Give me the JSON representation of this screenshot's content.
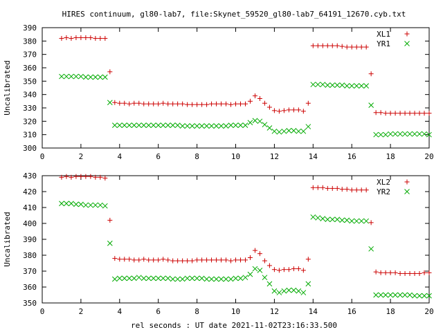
{
  "figure": {
    "title": "HIRES continuum, gl80-lab7, file:Skynet_59520_gl80-lab7_64191_12670.cyb.txt",
    "xlabel": "rel seconds : UT date 2021-11-02T23:16:33.500"
  },
  "chart_data": [
    {
      "type": "scatter",
      "ylabel": "Uncalibrated",
      "xlim": [
        0,
        20
      ],
      "ylim": [
        300,
        390
      ],
      "xticks": [
        0,
        2,
        4,
        6,
        8,
        10,
        12,
        14,
        16,
        18,
        20
      ],
      "yticks": [
        300,
        310,
        320,
        330,
        340,
        350,
        360,
        370,
        380,
        390
      ],
      "legend_position": "top-right",
      "series": [
        {
          "name": "XL1",
          "color": "#cc0000",
          "marker": "plus",
          "x": [
            1.0,
            1.25,
            1.5,
            1.75,
            2.0,
            2.25,
            2.5,
            2.75,
            3.0,
            3.25,
            3.5,
            3.75,
            4.0,
            4.25,
            4.5,
            4.75,
            5.0,
            5.25,
            5.5,
            5.75,
            6.0,
            6.25,
            6.5,
            6.75,
            7.0,
            7.25,
            7.5,
            7.75,
            8.0,
            8.25,
            8.5,
            8.75,
            9.0,
            9.25,
            9.5,
            9.75,
            10.0,
            10.25,
            10.5,
            10.75,
            11.0,
            11.25,
            11.5,
            11.75,
            12.0,
            12.25,
            12.5,
            12.75,
            13.0,
            13.25,
            13.5,
            13.75,
            14.0,
            14.25,
            14.5,
            14.75,
            15.0,
            15.25,
            15.5,
            15.75,
            16.0,
            16.25,
            16.5,
            16.75,
            17.0,
            17.25,
            17.5,
            17.75,
            18.0,
            18.25,
            18.5,
            18.75,
            19.0,
            19.25,
            19.5,
            19.75,
            20.0
          ],
          "y": [
            382,
            382.5,
            382,
            382.5,
            382.5,
            382.5,
            382.5,
            382,
            382,
            382,
            357,
            334,
            333.5,
            333.5,
            333,
            333.5,
            333.5,
            333,
            333,
            333,
            333,
            333.5,
            333,
            333,
            333,
            333,
            332.5,
            332.5,
            332.5,
            332.5,
            332.5,
            333,
            333,
            333,
            333,
            332.5,
            333,
            333,
            333,
            335,
            339,
            337,
            333.5,
            330.5,
            328,
            327.5,
            328,
            328.5,
            328.5,
            328.5,
            327.5,
            333.5,
            376.5,
            376.5,
            376.5,
            376.5,
            376.5,
            376.5,
            376,
            375.5,
            375.5,
            375.5,
            375.5,
            375.5,
            355.5,
            326.5,
            326.5,
            326,
            326,
            326,
            326,
            326,
            326,
            326,
            326,
            326,
            326
          ]
        },
        {
          "name": "YR1",
          "color": "#00aa00",
          "marker": "cross",
          "x": [
            1.0,
            1.25,
            1.5,
            1.75,
            2.0,
            2.25,
            2.5,
            2.75,
            3.0,
            3.25,
            3.5,
            3.75,
            4.0,
            4.25,
            4.5,
            4.75,
            5.0,
            5.25,
            5.5,
            5.75,
            6.0,
            6.25,
            6.5,
            6.75,
            7.0,
            7.25,
            7.5,
            7.75,
            8.0,
            8.25,
            8.5,
            8.75,
            9.0,
            9.25,
            9.5,
            9.75,
            10.0,
            10.25,
            10.5,
            10.75,
            11.0,
            11.25,
            11.5,
            11.75,
            12.0,
            12.25,
            12.5,
            12.75,
            13.0,
            13.25,
            13.5,
            13.75,
            14.0,
            14.25,
            14.5,
            14.75,
            15.0,
            15.25,
            15.5,
            15.75,
            16.0,
            16.25,
            16.5,
            16.75,
            17.0,
            17.25,
            17.5,
            17.75,
            18.0,
            18.25,
            18.5,
            18.75,
            19.0,
            19.25,
            19.5,
            19.75,
            20.0
          ],
          "y": [
            353.5,
            353.5,
            353.5,
            353.5,
            353.5,
            353,
            353,
            353,
            353,
            353,
            334,
            317,
            317,
            317,
            317,
            317,
            317,
            317,
            317,
            317,
            317,
            317,
            317,
            317,
            317,
            316.5,
            316.5,
            316.5,
            316.5,
            316.5,
            316.5,
            316.5,
            316.5,
            316.5,
            316.5,
            317,
            317,
            317,
            317,
            319,
            320.5,
            320,
            317.5,
            315,
            312.5,
            312,
            312.5,
            313,
            313,
            312.5,
            312.5,
            316,
            347.5,
            347.5,
            347.5,
            347,
            347,
            347,
            347,
            346.5,
            346.5,
            346.5,
            346.5,
            346.5,
            332,
            310,
            310,
            310,
            310.5,
            310.5,
            310.5,
            310.5,
            310.5,
            310.5,
            310.5,
            310.5,
            310
          ]
        }
      ]
    },
    {
      "type": "scatter",
      "ylabel": "Uncalibrated",
      "xlim": [
        0,
        20
      ],
      "ylim": [
        350,
        430
      ],
      "xticks": [
        0,
        2,
        4,
        6,
        8,
        10,
        12,
        14,
        16,
        18,
        20
      ],
      "yticks": [
        350,
        360,
        370,
        380,
        390,
        400,
        410,
        420,
        430
      ],
      "legend_position": "top-right",
      "series": [
        {
          "name": "XL2",
          "color": "#cc0000",
          "marker": "plus",
          "x": [
            1.0,
            1.25,
            1.5,
            1.75,
            2.0,
            2.25,
            2.5,
            2.75,
            3.0,
            3.25,
            3.5,
            3.75,
            4.0,
            4.25,
            4.5,
            4.75,
            5.0,
            5.25,
            5.5,
            5.75,
            6.0,
            6.25,
            6.5,
            6.75,
            7.0,
            7.25,
            7.5,
            7.75,
            8.0,
            8.25,
            8.5,
            8.75,
            9.0,
            9.25,
            9.5,
            9.75,
            10.0,
            10.25,
            10.5,
            10.75,
            11.0,
            11.25,
            11.5,
            11.75,
            12.0,
            12.25,
            12.5,
            12.75,
            13.0,
            13.25,
            13.5,
            13.75,
            14.0,
            14.25,
            14.5,
            14.75,
            15.0,
            15.25,
            15.5,
            15.75,
            16.0,
            16.25,
            16.5,
            16.75,
            17.0,
            17.25,
            17.5,
            17.75,
            18.0,
            18.25,
            18.5,
            18.75,
            19.0,
            19.25,
            19.5,
            19.75,
            20.0
          ],
          "y": [
            429,
            429.5,
            429,
            429.5,
            429.5,
            429.5,
            429.5,
            429,
            429,
            428.5,
            402,
            378,
            377.5,
            377.5,
            377.5,
            377,
            377,
            377.5,
            377,
            377,
            377,
            377.5,
            377,
            376.5,
            376.5,
            376.5,
            376.5,
            376.5,
            377,
            377,
            377,
            377,
            377,
            377,
            377,
            376.5,
            377,
            377,
            377,
            378.5,
            383,
            381,
            376.5,
            373.5,
            371,
            370.5,
            371,
            371,
            371.5,
            371.5,
            370.5,
            377.5,
            422.5,
            422.5,
            422.5,
            422,
            422,
            422,
            421.5,
            421.5,
            421,
            421,
            421,
            421,
            400.5,
            369.5,
            369,
            369,
            369,
            369,
            368.5,
            368.5,
            368.5,
            368.5,
            368.5,
            369,
            369
          ]
        },
        {
          "name": "YR2",
          "color": "#00aa00",
          "marker": "cross",
          "x": [
            1.0,
            1.25,
            1.5,
            1.75,
            2.0,
            2.25,
            2.5,
            2.75,
            3.0,
            3.25,
            3.5,
            3.75,
            4.0,
            4.25,
            4.5,
            4.75,
            5.0,
            5.25,
            5.5,
            5.75,
            6.0,
            6.25,
            6.5,
            6.75,
            7.0,
            7.25,
            7.5,
            7.75,
            8.0,
            8.25,
            8.5,
            8.75,
            9.0,
            9.25,
            9.5,
            9.75,
            10.0,
            10.25,
            10.5,
            10.75,
            11.0,
            11.25,
            11.5,
            11.75,
            12.0,
            12.25,
            12.5,
            12.75,
            13.0,
            13.25,
            13.5,
            13.75,
            14.0,
            14.25,
            14.5,
            14.75,
            15.0,
            15.25,
            15.5,
            15.75,
            16.0,
            16.25,
            16.5,
            16.75,
            17.0,
            17.25,
            17.5,
            17.75,
            18.0,
            18.25,
            18.5,
            18.75,
            19.0,
            19.25,
            19.5,
            19.75,
            20.0
          ],
          "y": [
            412.5,
            412.5,
            412.5,
            412,
            412,
            411.5,
            411.5,
            411.5,
            411.5,
            411,
            387.5,
            365,
            365.5,
            365.5,
            365.5,
            365.5,
            366,
            365.5,
            365.5,
            365.5,
            365.5,
            365.5,
            365.5,
            365,
            365,
            365,
            365.5,
            365.5,
            365.5,
            365.5,
            365,
            365,
            365,
            365,
            365,
            365,
            365.5,
            365.5,
            366,
            368,
            371.5,
            370.5,
            366,
            362,
            357.5,
            356.5,
            357.5,
            358,
            358,
            357.5,
            356.5,
            362,
            404,
            403.5,
            403,
            402.5,
            402.5,
            402.5,
            402,
            402,
            401.5,
            401.5,
            401.5,
            401.5,
            384,
            355,
            355,
            355,
            355,
            355,
            355,
            355,
            355,
            354.5,
            354.5,
            354.5,
            354.5
          ]
        }
      ]
    }
  ]
}
